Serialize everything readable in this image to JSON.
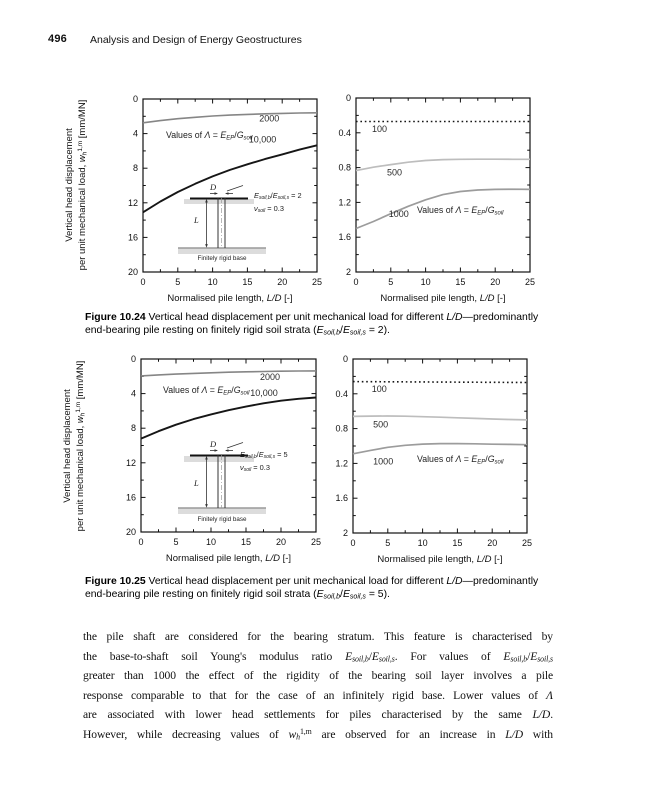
{
  "page": {
    "number": "496",
    "running_title": "Analysis and Design of Energy Geostructures"
  },
  "lambda_note": [
    {
      "t": "Values of "
    },
    {
      "t": "Λ",
      "i": true
    },
    {
      "t": " = "
    },
    {
      "t": "E",
      "i": true
    },
    {
      "t": "EP",
      "sub": true,
      "i": true
    },
    {
      "t": "/"
    },
    {
      "t": "G",
      "i": true
    },
    {
      "t": "soil",
      "sub": true,
      "i": true
    }
  ],
  "figures": [
    {
      "caption_lines": [
        [
          {
            "t": "Figure 10.24",
            "b": true
          },
          {
            "t": " Vertical head displacement per unit mechanical load for different "
          },
          {
            "t": "L/D",
            "i": true
          },
          {
            "t": "—predominantly"
          }
        ],
        [
          {
            "t": "end-bearing pile resting on finitely rigid soil strata ("
          },
          {
            "t": "E",
            "i": true
          },
          {
            "t": "soil,b",
            "sub": true,
            "i": true
          },
          {
            "t": "/"
          },
          {
            "t": "E",
            "i": true
          },
          {
            "t": "soil,s",
            "sub": true,
            "i": true
          },
          {
            "t": " = 2)."
          }
        ]
      ],
      "inset": {
        "ratio": [
          {
            "t": "E",
            "i": true
          },
          {
            "t": "soil,b",
            "sub": true,
            "i": true
          },
          {
            "t": "/"
          },
          {
            "t": "E",
            "i": true
          },
          {
            "t": "soil,s",
            "sub": true,
            "i": true
          },
          {
            "t": " = 2"
          }
        ],
        "nu": [
          {
            "t": "ν",
            "i": true
          },
          {
            "t": "soil",
            "sub": true,
            "i": true
          },
          {
            "t": " = 0.3"
          }
        ],
        "base_label": "Finitely rigid base",
        "D": "D",
        "L": "L"
      }
    },
    {
      "caption_lines": [
        [
          {
            "t": "Figure 10.25",
            "b": true
          },
          {
            "t": " Vertical head displacement per unit mechanical load for different "
          },
          {
            "t": "L/D",
            "i": true
          },
          {
            "t": "—predominantly"
          }
        ],
        [
          {
            "t": "end-bearing pile resting on finitely rigid soil strata ("
          },
          {
            "t": "E",
            "i": true
          },
          {
            "t": "soil,b",
            "sub": true,
            "i": true
          },
          {
            "t": "/"
          },
          {
            "t": "E",
            "i": true
          },
          {
            "t": "soil,s",
            "sub": true,
            "i": true
          },
          {
            "t": " = 5)."
          }
        ]
      ],
      "inset": {
        "ratio": [
          {
            "t": "E",
            "i": true
          },
          {
            "t": "soil,b",
            "sub": true,
            "i": true
          },
          {
            "t": "/"
          },
          {
            "t": "E",
            "i": true
          },
          {
            "t": "soil,s",
            "sub": true,
            "i": true
          },
          {
            "t": " = 5"
          }
        ],
        "nu": [
          {
            "t": "ν",
            "i": true
          },
          {
            "t": "soil",
            "sub": true,
            "i": true
          },
          {
            "t": " = 0.3"
          }
        ],
        "base_label": "Finitely rigid base",
        "D": "D",
        "L": "L"
      }
    }
  ],
  "chart_data": [
    {
      "type": "line",
      "xlim": [
        0,
        25
      ],
      "ylim": [
        0,
        20
      ],
      "y_down": true,
      "xticks": [
        0,
        5,
        10,
        15,
        20,
        25
      ],
      "xtick_labels": [
        "0",
        "5",
        "10",
        "15",
        "20",
        "25"
      ],
      "x_minor_step": 2.5,
      "yticks": [
        0,
        4,
        8,
        12,
        16,
        20
      ],
      "ytick_labels": [
        "0",
        "4",
        "8",
        "12",
        "16",
        "20"
      ],
      "y_minor_step": 2,
      "xlabel_segments": [
        {
          "t": "Normalised pile length, "
        },
        {
          "t": "L/D",
          "i": true
        },
        {
          "t": " [-]"
        }
      ],
      "ylabel_lines": [
        [
          {
            "t": "Vertical head displacement"
          }
        ],
        [
          {
            "t": "per unit mechanical load, "
          },
          {
            "t": "w",
            "i": true
          },
          {
            "t": "h",
            "sub": true,
            "i": true
          },
          {
            "t": "1,m",
            "sup": true
          },
          {
            "t": " [mm/MN]"
          }
        ]
      ],
      "series": [
        {
          "name": "2000",
          "color": "#868686",
          "width": 1.6,
          "dash": null,
          "label_pos": [
            16.7,
            2.6
          ],
          "points": [
            [
              0,
              2.75
            ],
            [
              2.5,
              2.5
            ],
            [
              5,
              2.28
            ],
            [
              7.5,
              2.11
            ],
            [
              10,
              1.97
            ],
            [
              12.5,
              1.86
            ],
            [
              15,
              1.78
            ],
            [
              17.5,
              1.71
            ],
            [
              20,
              1.66
            ],
            [
              22.5,
              1.62
            ],
            [
              25,
              1.6
            ]
          ]
        },
        {
          "name": "10,000",
          "color": "#161616",
          "width": 1.9,
          "dash": null,
          "label_pos": [
            15.2,
            5.0
          ],
          "points": [
            [
              0,
              13.1
            ],
            [
              2.5,
              11.85
            ],
            [
              5,
              10.75
            ],
            [
              7.5,
              9.8
            ],
            [
              10,
              8.95
            ],
            [
              12.5,
              8.2
            ],
            [
              15,
              7.55
            ],
            [
              17.5,
              6.95
            ],
            [
              20,
              6.4
            ],
            [
              22.5,
              5.85
            ],
            [
              25,
              5.35
            ]
          ]
        }
      ]
    },
    {
      "type": "line",
      "xlim": [
        0,
        25
      ],
      "ylim": [
        0,
        2
      ],
      "y_down": true,
      "xticks": [
        0,
        5,
        10,
        15,
        20,
        25
      ],
      "xtick_labels": [
        "0",
        "5",
        "10",
        "15",
        "20",
        "25"
      ],
      "x_minor_step": 2.5,
      "yticks": [
        0,
        0.4,
        0.8,
        1.2,
        1.6,
        2
      ],
      "ytick_labels": [
        "0",
        "0.4",
        "0.8",
        "1.2",
        "1.6",
        "2"
      ],
      "y_minor_step": 0.2,
      "xlabel_segments": [
        {
          "t": "Normalised pile length, "
        },
        {
          "t": "L/D",
          "i": true
        },
        {
          "t": " [-]"
        }
      ],
      "series": [
        {
          "name": "100",
          "color": "#161616",
          "width": 1.6,
          "dash": "1.6,2.8",
          "label_pos": [
            2.3,
            0.39
          ],
          "points": [
            [
              0,
              0.27
            ],
            [
              25,
              0.27
            ]
          ]
        },
        {
          "name": "500",
          "color": "#bdbdbd",
          "width": 1.7,
          "dash": null,
          "label_pos": [
            4.45,
            0.89
          ],
          "points": [
            [
              0,
              0.835
            ],
            [
              2.5,
              0.795
            ],
            [
              5,
              0.765
            ],
            [
              7.5,
              0.738
            ],
            [
              10,
              0.718
            ],
            [
              12.5,
              0.708
            ],
            [
              15,
              0.705
            ],
            [
              17.5,
              0.704
            ],
            [
              20,
              0.704
            ],
            [
              22.5,
              0.705
            ],
            [
              25,
              0.705
            ]
          ]
        },
        {
          "name": "1000",
          "color": "#9c9c9c",
          "width": 1.7,
          "dash": null,
          "label_pos": [
            4.7,
            1.37
          ],
          "points": [
            [
              0,
              1.5
            ],
            [
              2.5,
              1.42
            ],
            [
              5,
              1.33
            ],
            [
              7.5,
              1.245
            ],
            [
              10,
              1.17
            ],
            [
              12.5,
              1.11
            ],
            [
              15,
              1.075
            ],
            [
              17.5,
              1.057
            ],
            [
              20,
              1.05
            ],
            [
              22.5,
              1.048
            ],
            [
              25,
              1.05
            ]
          ]
        }
      ]
    },
    {
      "type": "line",
      "xlim": [
        0,
        25
      ],
      "ylim": [
        0,
        20
      ],
      "y_down": true,
      "xticks": [
        0,
        5,
        10,
        15,
        20,
        25
      ],
      "xtick_labels": [
        "0",
        "5",
        "10",
        "15",
        "20",
        "25"
      ],
      "x_minor_step": 2.5,
      "yticks": [
        0,
        4,
        8,
        12,
        16,
        20
      ],
      "ytick_labels": [
        "0",
        "4",
        "8",
        "12",
        "16",
        "20"
      ],
      "y_minor_step": 2,
      "xlabel_segments": [
        {
          "t": "Normalised pile length, "
        },
        {
          "t": "L/D",
          "i": true
        },
        {
          "t": " [-]"
        }
      ],
      "ylabel_lines": [
        [
          {
            "t": "Vertical head displacement"
          }
        ],
        [
          {
            "t": "per unit mechanical load, "
          },
          {
            "t": "w",
            "i": true
          },
          {
            "t": "h",
            "sub": true,
            "i": true
          },
          {
            "t": "1,m",
            "sup": true
          },
          {
            "t": " [mm/MN]"
          }
        ]
      ],
      "series": [
        {
          "name": "2000",
          "color": "#868686",
          "width": 1.6,
          "dash": null,
          "label_pos": [
            17,
            2.44
          ],
          "points": [
            [
              0,
              1.95
            ],
            [
              2.5,
              1.84
            ],
            [
              5,
              1.75
            ],
            [
              7.5,
              1.66
            ],
            [
              10,
              1.59
            ],
            [
              12.5,
              1.53
            ],
            [
              15,
              1.48
            ],
            [
              17.5,
              1.44
            ],
            [
              20,
              1.41
            ],
            [
              22.5,
              1.385
            ],
            [
              25,
              1.37
            ]
          ]
        },
        {
          "name": "10,000",
          "color": "#161616",
          "width": 1.9,
          "dash": null,
          "label_pos": [
            15.6,
            4.3
          ],
          "points": [
            [
              0,
              9.2
            ],
            [
              2.5,
              8.35
            ],
            [
              5,
              7.6
            ],
            [
              7.5,
              6.95
            ],
            [
              10,
              6.4
            ],
            [
              12.5,
              5.92
            ],
            [
              15,
              5.5
            ],
            [
              17.5,
              5.12
            ],
            [
              20,
              4.82
            ],
            [
              22.5,
              4.6
            ],
            [
              25,
              4.45
            ]
          ]
        }
      ]
    },
    {
      "type": "line",
      "xlim": [
        0,
        25
      ],
      "ylim": [
        0,
        2
      ],
      "y_down": true,
      "xticks": [
        0,
        5,
        10,
        15,
        20,
        25
      ],
      "xtick_labels": [
        "0",
        "5",
        "10",
        "15",
        "20",
        "25"
      ],
      "x_minor_step": 2.5,
      "yticks": [
        0,
        0.4,
        0.8,
        1.2,
        1.6,
        2
      ],
      "ytick_labels": [
        "0",
        "0.4",
        "0.8",
        "1.2",
        "1.6",
        "2"
      ],
      "y_minor_step": 0.2,
      "xlabel_segments": [
        {
          "t": "Normalised pile length, "
        },
        {
          "t": "L/D",
          "i": true
        },
        {
          "t": " [-]"
        }
      ],
      "series": [
        {
          "name": "100",
          "color": "#161616",
          "width": 1.6,
          "dash": "1.6,2.8",
          "label_pos": [
            2.7,
            0.38
          ],
          "points": [
            [
              0,
              0.26
            ],
            [
              25,
              0.27
            ]
          ]
        },
        {
          "name": "500",
          "color": "#bdbdbd",
          "width": 1.7,
          "dash": null,
          "label_pos": [
            2.9,
            0.79
          ],
          "points": [
            [
              0,
              0.66
            ],
            [
              2.5,
              0.656
            ],
            [
              5,
              0.655
            ],
            [
              7.5,
              0.658
            ],
            [
              10,
              0.663
            ],
            [
              12.5,
              0.669
            ],
            [
              15,
              0.676
            ],
            [
              17.5,
              0.683
            ],
            [
              20,
              0.69
            ],
            [
              22.5,
              0.695
            ],
            [
              25,
              0.7
            ]
          ]
        },
        {
          "name": "1000",
          "color": "#9c9c9c",
          "width": 1.7,
          "dash": null,
          "label_pos": [
            2.9,
            1.21
          ],
          "points": [
            [
              0,
              1.09
            ],
            [
              2.5,
              1.05
            ],
            [
              5,
              1.015
            ],
            [
              7.5,
              0.992
            ],
            [
              10,
              0.978
            ],
            [
              12.5,
              0.972
            ],
            [
              15,
              0.972
            ],
            [
              17.5,
              0.975
            ],
            [
              20,
              0.979
            ],
            [
              22.5,
              0.982
            ],
            [
              25,
              0.985
            ]
          ]
        }
      ]
    }
  ],
  "body": {
    "lines": [
      [
        {
          "t": "the pile shaft are considered for the bearing stratum. This feature is characterised by"
        }
      ],
      [
        {
          "t": "the base-to-shaft soil Young's modulus ratio "
        },
        {
          "t": "E",
          "i": true
        },
        {
          "t": "soil,b",
          "sub": true,
          "i": true
        },
        {
          "t": "/"
        },
        {
          "t": "E",
          "i": true
        },
        {
          "t": "soil,s",
          "sub": true,
          "i": true
        },
        {
          "t": ". For values of "
        },
        {
          "t": "E",
          "i": true
        },
        {
          "t": "soil,b",
          "sub": true,
          "i": true
        },
        {
          "t": "/"
        },
        {
          "t": "E",
          "i": true
        },
        {
          "t": "soil,s",
          "sub": true,
          "i": true
        }
      ],
      [
        {
          "t": "greater than 1000 the effect of the rigidity of the bearing soil layer involves a pile"
        }
      ],
      [
        {
          "t": "response comparable to that for the case of an infinitely rigid base. Lower values of "
        },
        {
          "t": "Λ",
          "i": true
        }
      ],
      [
        {
          "t": "are associated with lower head settlements for piles characterised by the same "
        },
        {
          "t": "L/D",
          "i": true
        },
        {
          "t": "."
        }
      ],
      [
        {
          "t": "However, while decreasing values of "
        },
        {
          "t": "w",
          "i": true
        },
        {
          "t": "h",
          "sub": true,
          "i": true
        },
        {
          "t": "1,m",
          "sup": true
        },
        {
          "t": " are observed for an increase in "
        },
        {
          "t": "L/D",
          "i": true
        },
        {
          "t": " with"
        }
      ]
    ]
  }
}
